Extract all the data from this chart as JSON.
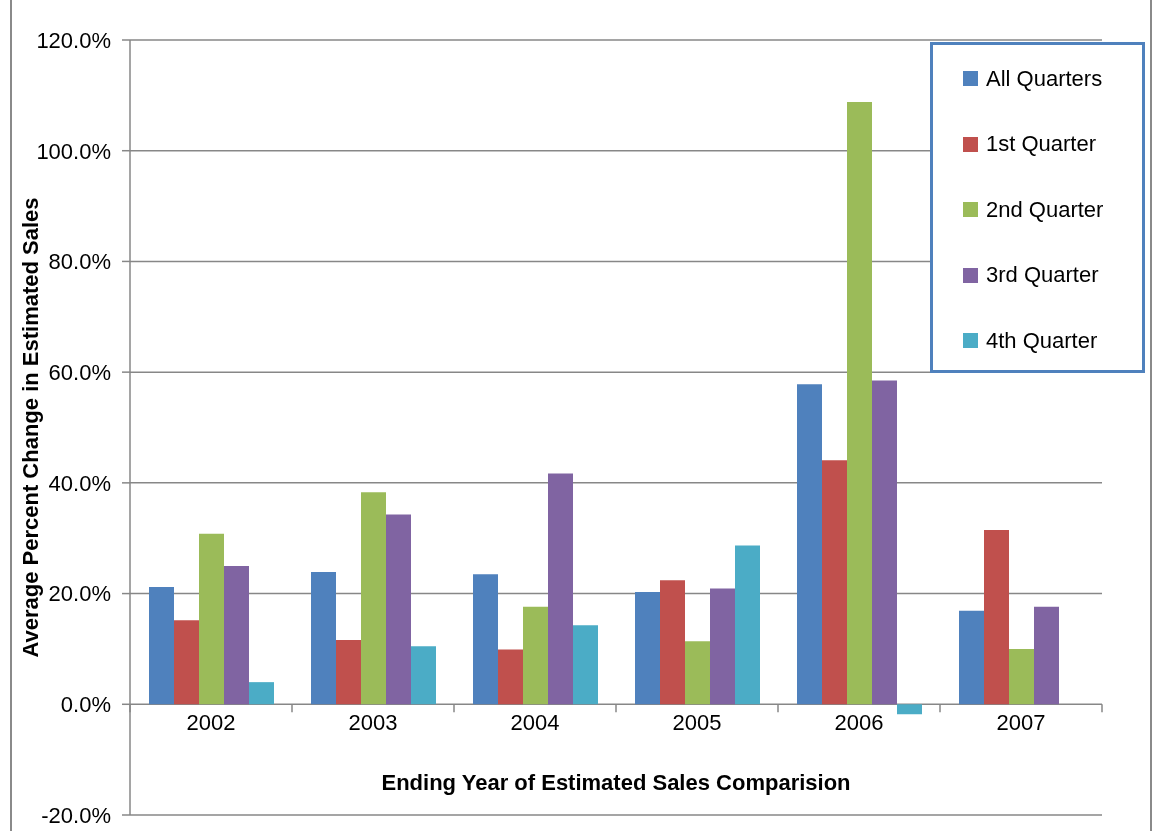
{
  "chart_data": {
    "type": "bar",
    "xlabel": "Ending Year of Estimated Sales Comparision",
    "ylabel": "Average Percent Change in Estimated Sales",
    "categories": [
      "2002",
      "2003",
      "2004",
      "2005",
      "2006",
      "2007"
    ],
    "series": [
      {
        "name": "All Quarters",
        "color": "#4f81bd",
        "values": [
          21.2,
          23.9,
          23.5,
          20.3,
          57.8,
          16.9
        ]
      },
      {
        "name": "1st Quarter",
        "color": "#c0504d",
        "values": [
          15.2,
          11.6,
          9.9,
          22.4,
          44.1,
          31.5
        ]
      },
      {
        "name": "2nd Quarter",
        "color": "#9bbb59",
        "values": [
          30.8,
          38.3,
          17.6,
          11.4,
          108.8,
          10.0
        ]
      },
      {
        "name": "3rd Quarter",
        "color": "#8064a2",
        "values": [
          25.0,
          34.3,
          41.7,
          20.9,
          58.5,
          17.6
        ]
      },
      {
        "name": "4th Quarter",
        "color": "#4bacc6",
        "values": [
          4.0,
          10.5,
          14.3,
          28.7,
          -1.8,
          null
        ]
      }
    ],
    "ylim": [
      -20,
      120
    ],
    "yticks": [
      {
        "value": -20,
        "label": "-20.0%"
      },
      {
        "value": 0,
        "label": "0.0%"
      },
      {
        "value": 20,
        "label": "20.0%"
      },
      {
        "value": 40,
        "label": "40.0%"
      },
      {
        "value": 60,
        "label": "60.0%"
      },
      {
        "value": 80,
        "label": "80.0%"
      },
      {
        "value": 100,
        "label": "100.0%"
      },
      {
        "value": 120,
        "label": "120.0%"
      }
    ],
    "grid": "y",
    "legend": "top right"
  }
}
